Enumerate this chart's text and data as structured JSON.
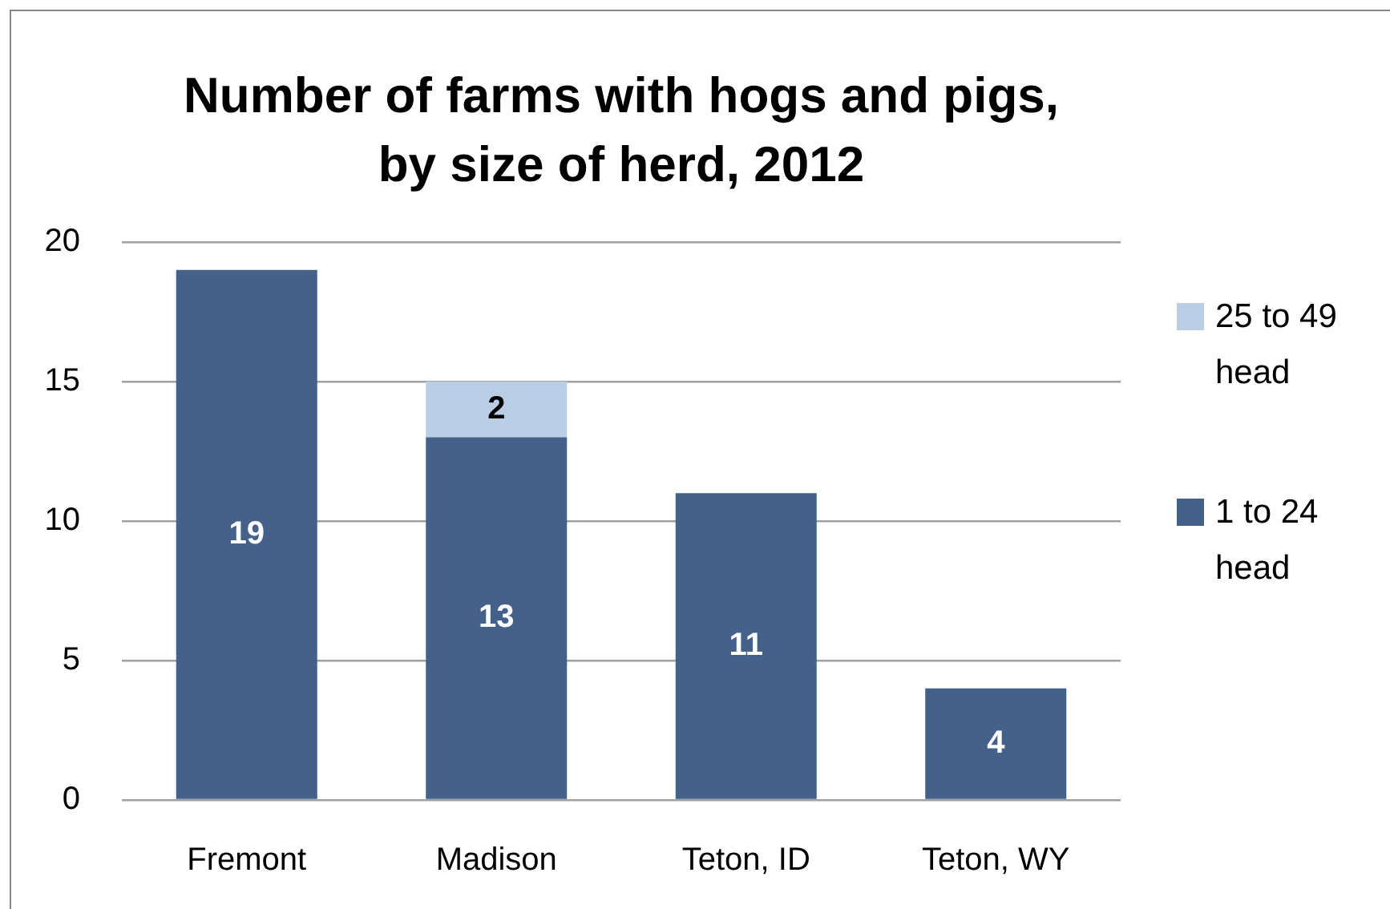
{
  "chart_data": {
    "type": "bar",
    "title": "Number of farms with hogs and pigs, by size of herd, 2012",
    "categories": [
      "Fremont",
      "Madison",
      "Teton, ID",
      "Teton, WY"
    ],
    "series": [
      {
        "name": "1 to 24 head",
        "color": "#44618a",
        "values": [
          19,
          13,
          11,
          4
        ]
      },
      {
        "name": "25 to 49 head",
        "color": "#b9cde5",
        "values": [
          null,
          2,
          null,
          null
        ]
      }
    ],
    "stacked": true,
    "ylim": [
      0,
      20
    ],
    "yticks": [
      0,
      5,
      10,
      15,
      20
    ],
    "grid": "y",
    "legend": "right",
    "data_labels": true
  }
}
